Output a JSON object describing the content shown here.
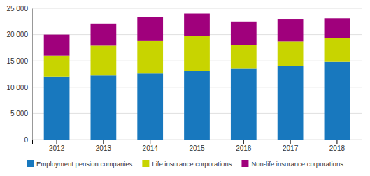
{
  "chart_data": {
    "type": "bar",
    "stacked": true,
    "categories": [
      "2012",
      "2013",
      "2014",
      "2015",
      "2016",
      "2017",
      "2018"
    ],
    "series": [
      {
        "name": "Employment pension companies",
        "color": "#1878be",
        "values": [
          12000,
          12200,
          12600,
          13100,
          13500,
          14000,
          14800
        ]
      },
      {
        "name": "Life insurance corporations",
        "color": "#c8d400",
        "values": [
          4000,
          5700,
          6300,
          6700,
          4500,
          4700,
          4500
        ]
      },
      {
        "name": "Non-life insurance corporations",
        "color": "#a0007c",
        "values": [
          4000,
          4200,
          4400,
          4200,
          4500,
          4300,
          3800
        ]
      }
    ],
    "ylim": [
      0,
      25000
    ],
    "yticks": [
      0,
      {
        "value": 5000,
        "label": "5 000"
      },
      {
        "value": 10000,
        "label": "10 000"
      },
      {
        "value": 15000,
        "label": "15 000"
      },
      {
        "value": 20000,
        "label": "20 000"
      },
      {
        "value": 25000,
        "label": "25 000"
      }
    ],
    "grid": true,
    "legend": "bottom"
  }
}
